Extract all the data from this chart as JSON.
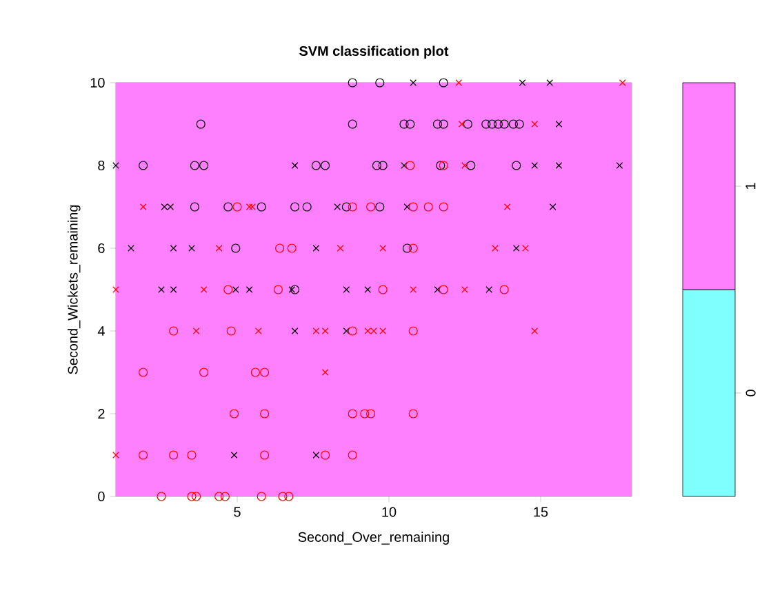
{
  "chart_data": {
    "type": "scatter",
    "title": "SVM classification plot",
    "xlabel": "Second_Over_remaining",
    "ylabel": "Second_Wickets_remaining",
    "xlim": [
      1,
      18
    ],
    "ylim": [
      0,
      10
    ],
    "xticks": [
      5,
      10,
      15
    ],
    "yticks": [
      0,
      2,
      4,
      6,
      8,
      10
    ],
    "bands": [
      {
        "axis": "y",
        "from": 0,
        "to": 10,
        "color": "#ff80ff"
      }
    ],
    "clim": [
      -0.5,
      1.5
    ],
    "cticks": [
      0,
      1
    ],
    "colors": [
      "#80ffff",
      "#ff80ff"
    ],
    "series": [
      {
        "color": "#000000",
        "marker": "cross",
        "x": [
          10.8,
          14.4,
          15.3,
          15.6,
          1.0,
          6.9,
          10.5,
          14.8,
          15.6,
          17.6,
          2.6,
          2.8,
          8.3,
          10.6,
          15.4,
          1.5,
          2.9,
          3.5,
          7.6,
          14.2,
          2.5,
          2.9,
          4.95,
          5.4,
          6.8,
          8.6,
          9.3,
          11.6,
          13.3,
          6.9,
          8.6,
          4.9,
          7.6
        ],
        "values": [
          10,
          10,
          10,
          9,
          8,
          8,
          8,
          8,
          8,
          8,
          7,
          7,
          7,
          7,
          7,
          6,
          6,
          6,
          6,
          6,
          5,
          5,
          5,
          5,
          5,
          5,
          5,
          5,
          5,
          4,
          4,
          1,
          1
        ]
      },
      {
        "color": "#000000",
        "marker": "circle",
        "x": [
          8.8,
          9.7,
          11.8,
          3.8,
          8.8,
          10.5,
          10.7,
          11.6,
          11.8,
          12.6,
          13.2,
          13.4,
          13.6,
          13.8,
          14.1,
          14.3,
          1.9,
          3.6,
          3.9,
          7.6,
          7.9,
          9.6,
          9.8,
          11.7,
          12.7,
          14.2,
          3.6,
          4.7,
          5.8,
          6.9,
          7.3,
          8.6,
          9.7,
          4.95,
          10.6,
          6.9
        ],
        "values": [
          10,
          10,
          10,
          9,
          9,
          9,
          9,
          9,
          9,
          9,
          9,
          9,
          9,
          9,
          9,
          9,
          8,
          8,
          8,
          8,
          8,
          8,
          8,
          8,
          8,
          8,
          7,
          7,
          7,
          7,
          7,
          7,
          7,
          6,
          6,
          5
        ]
      },
      {
        "color": "#ff0000",
        "marker": "cross",
        "x": [
          12.3,
          17.7,
          12.4,
          14.8,
          12.5,
          1.9,
          5.4,
          5.5,
          13.9,
          4.4,
          8.4,
          9.8,
          13.5,
          14.5,
          1.0,
          3.9,
          10.8,
          12.5,
          3.65,
          5.7,
          7.6,
          7.9,
          9.3,
          9.5,
          9.8,
          14.8,
          7.9,
          1.0
        ],
        "values": [
          10,
          10,
          9,
          9,
          8,
          7,
          7,
          7,
          7,
          6,
          6,
          6,
          6,
          6,
          5,
          5,
          5,
          5,
          4,
          4,
          4,
          4,
          4,
          4,
          4,
          4,
          3,
          1
        ]
      },
      {
        "color": "#ff0000",
        "marker": "circle",
        "x": [
          10.7,
          11.8,
          5.0,
          8.8,
          9.4,
          10.8,
          11.3,
          11.8,
          6.4,
          6.8,
          10.8,
          4.7,
          6.35,
          9.8,
          11.8,
          13.8,
          2.9,
          4.8,
          8.8,
          10.8,
          1.9,
          3.9,
          5.6,
          5.9,
          4.9,
          5.9,
          8.8,
          9.2,
          9.4,
          10.8,
          1.9,
          2.9,
          3.5,
          5.9,
          7.9,
          8.8,
          2.5,
          3.5,
          3.65,
          4.4,
          4.6,
          5.8,
          6.5,
          6.7
        ],
        "values": [
          8,
          8,
          7,
          7,
          7,
          7,
          7,
          7,
          6,
          6,
          6,
          5,
          5,
          5,
          5,
          5,
          4,
          4,
          4,
          4,
          3,
          3,
          3,
          3,
          2,
          2,
          2,
          2,
          2,
          2,
          1,
          1,
          1,
          1,
          1,
          1,
          0,
          0,
          0,
          0,
          0,
          0,
          0,
          0
        ]
      }
    ]
  }
}
